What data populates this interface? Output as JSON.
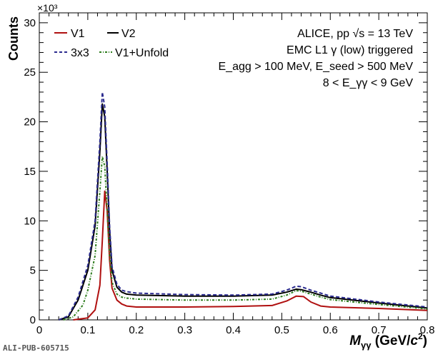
{
  "chart_data": {
    "type": "line",
    "xlabel": "M_γγ (GeV/c²)",
    "ylabel": "Counts",
    "y_multiplier": "×10³",
    "xlim": [
      0,
      0.8
    ],
    "ylim": [
      0,
      31000
    ],
    "x_ticks": [
      "0",
      "0.1",
      "0.2",
      "0.3",
      "0.4",
      "0.5",
      "0.6",
      "0.7",
      "0.8"
    ],
    "y_ticks": [
      "0",
      "5",
      "10",
      "15",
      "20",
      "25",
      "30"
    ],
    "legend": {
      "placement": "top-left",
      "entries": [
        "V1",
        "V2",
        "3x3",
        "V1+Unfold"
      ]
    },
    "annotations": [
      "ALICE, pp √s = 13 TeV",
      "EMC L1 γ (low) triggered",
      "E_agg > 100 MeV, E_seed > 500 MeV",
      "8 < E_γγ < 9 GeV"
    ],
    "publication_id": "ALI-PUB-605715",
    "series": [
      {
        "name": "V1",
        "color": "#b01010",
        "dash": "solid",
        "x": [
          0.07,
          0.1,
          0.115,
          0.125,
          0.13,
          0.135,
          0.14,
          0.145,
          0.15,
          0.16,
          0.17,
          0.18,
          0.2,
          0.3,
          0.4,
          0.48,
          0.51,
          0.53,
          0.545,
          0.56,
          0.58,
          0.6,
          0.7,
          0.8
        ],
        "y": [
          0,
          200,
          1000,
          3500,
          8000,
          13000,
          11000,
          6000,
          3200,
          2000,
          1600,
          1400,
          1300,
          1300,
          1350,
          1450,
          1900,
          2400,
          2350,
          1800,
          1400,
          1300,
          1150,
          950
        ]
      },
      {
        "name": "V2",
        "color": "#000000",
        "dash": "solid",
        "x": [
          0.04,
          0.06,
          0.08,
          0.1,
          0.115,
          0.125,
          0.13,
          0.135,
          0.14,
          0.145,
          0.15,
          0.16,
          0.17,
          0.18,
          0.2,
          0.3,
          0.4,
          0.48,
          0.51,
          0.53,
          0.54,
          0.56,
          0.58,
          0.6,
          0.7,
          0.8
        ],
        "y": [
          0,
          300,
          2000,
          5000,
          9500,
          17000,
          21800,
          20500,
          15000,
          9000,
          5000,
          3300,
          2800,
          2600,
          2500,
          2400,
          2400,
          2500,
          2800,
          3100,
          3050,
          2800,
          2500,
          2250,
          1700,
          1200
        ]
      },
      {
        "name": "3x3",
        "color": "#2a2a8e",
        "dash": "dashed",
        "x": [
          0.04,
          0.06,
          0.08,
          0.1,
          0.115,
          0.125,
          0.13,
          0.135,
          0.14,
          0.145,
          0.15,
          0.16,
          0.17,
          0.18,
          0.2,
          0.3,
          0.4,
          0.48,
          0.51,
          0.53,
          0.54,
          0.56,
          0.58,
          0.6,
          0.7,
          0.8
        ],
        "y": [
          0,
          400,
          2300,
          5500,
          10000,
          18000,
          23000,
          21500,
          15800,
          9500,
          5400,
          3600,
          3000,
          2850,
          2700,
          2550,
          2500,
          2600,
          3000,
          3400,
          3350,
          3000,
          2700,
          2400,
          1800,
          1300
        ]
      },
      {
        "name": "V1+Unfold",
        "color": "#2e7d1e",
        "dash": "dotdash",
        "x": [
          0.05,
          0.07,
          0.09,
          0.1,
          0.115,
          0.125,
          0.13,
          0.135,
          0.14,
          0.145,
          0.15,
          0.16,
          0.17,
          0.18,
          0.2,
          0.3,
          0.4,
          0.48,
          0.51,
          0.53,
          0.54,
          0.56,
          0.58,
          0.6,
          0.7,
          0.8
        ],
        "y": [
          0,
          300,
          1500,
          3000,
          6500,
          13000,
          16500,
          15500,
          11000,
          6500,
          3800,
          2600,
          2300,
          2200,
          2100,
          2000,
          2000,
          2100,
          2500,
          2950,
          2900,
          2600,
          2300,
          2050,
          1550,
          1100
        ]
      }
    ]
  }
}
